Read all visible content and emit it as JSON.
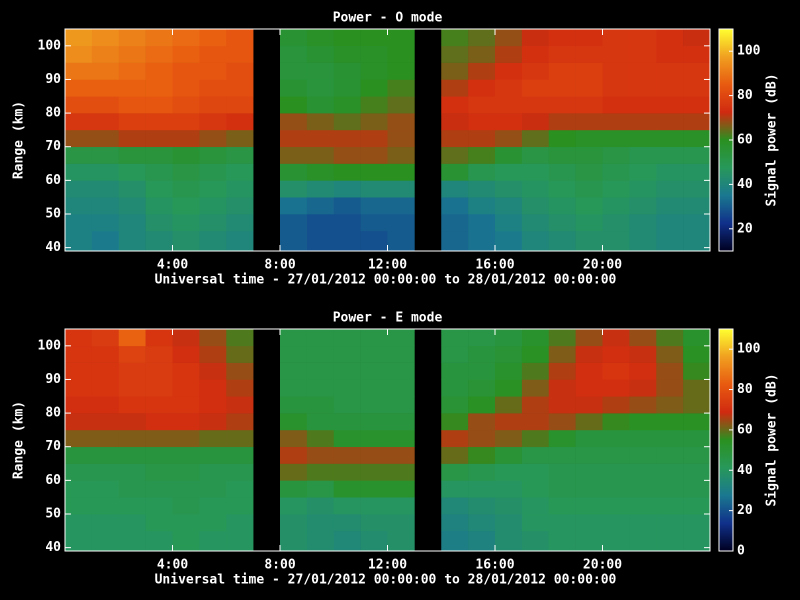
{
  "chart_data": [
    {
      "type": "heatmap",
      "title": "Power - O mode",
      "x_label": "Universal time - 27/01/2012 00:00:00 to 28/01/2012 00:00:00",
      "y_label": "Range (km)",
      "colorbar_label": "Signal power (dB)",
      "x": [
        0,
        1,
        2,
        3,
        4,
        5,
        6,
        7,
        8,
        9,
        10,
        11,
        12,
        13,
        14,
        15,
        16,
        17,
        18,
        19,
        20,
        21,
        22,
        23
      ],
      "y": [
        40,
        45,
        50,
        55,
        60,
        65,
        70,
        75,
        80,
        85,
        90,
        95,
        100
      ],
      "z": [
        [
          38,
          36,
          40,
          42,
          44,
          42,
          40,
          null,
          30,
          28,
          28,
          28,
          30,
          null,
          32,
          34,
          36,
          40,
          42,
          44,
          44,
          42,
          40,
          40
        ],
        [
          38,
          38,
          40,
          44,
          46,
          44,
          42,
          null,
          30,
          28,
          28,
          30,
          30,
          null,
          32,
          34,
          38,
          42,
          44,
          46,
          44,
          42,
          40,
          40
        ],
        [
          40,
          40,
          42,
          46,
          48,
          46,
          44,
          null,
          34,
          32,
          30,
          32,
          32,
          null,
          34,
          38,
          40,
          44,
          46,
          48,
          46,
          44,
          42,
          42
        ],
        [
          42,
          42,
          44,
          48,
          50,
          48,
          46,
          null,
          44,
          42,
          40,
          42,
          42,
          null,
          40,
          42,
          44,
          46,
          48,
          50,
          48,
          46,
          44,
          44
        ],
        [
          46,
          46,
          48,
          50,
          52,
          50,
          48,
          null,
          56,
          58,
          60,
          60,
          60,
          null,
          56,
          50,
          48,
          48,
          50,
          52,
          50,
          48,
          46,
          46
        ],
        [
          52,
          52,
          54,
          54,
          56,
          54,
          52,
          null,
          66,
          66,
          68,
          68,
          66,
          null,
          64,
          62,
          56,
          52,
          54,
          54,
          52,
          50,
          50,
          50
        ],
        [
          68,
          68,
          70,
          70,
          70,
          68,
          66,
          null,
          70,
          70,
          70,
          70,
          68,
          null,
          70,
          70,
          68,
          64,
          60,
          58,
          58,
          58,
          58,
          58
        ],
        [
          76,
          76,
          78,
          78,
          78,
          76,
          74,
          null,
          68,
          66,
          64,
          66,
          68,
          null,
          72,
          74,
          74,
          72,
          70,
          70,
          70,
          70,
          70,
          70
        ],
        [
          82,
          82,
          84,
          84,
          82,
          80,
          80,
          null,
          60,
          56,
          58,
          62,
          64,
          null,
          74,
          76,
          76,
          76,
          76,
          76,
          74,
          74,
          74,
          74
        ],
        [
          86,
          86,
          86,
          86,
          84,
          82,
          82,
          null,
          56,
          54,
          56,
          60,
          62,
          null,
          70,
          74,
          76,
          78,
          78,
          78,
          76,
          76,
          76,
          76
        ],
        [
          90,
          90,
          88,
          86,
          84,
          84,
          82,
          null,
          54,
          54,
          56,
          58,
          60,
          null,
          66,
          70,
          74,
          76,
          78,
          78,
          76,
          76,
          76,
          76
        ],
        [
          94,
          92,
          90,
          88,
          86,
          84,
          84,
          null,
          54,
          56,
          58,
          58,
          60,
          null,
          64,
          66,
          70,
          74,
          76,
          76,
          76,
          76,
          74,
          74
        ],
        [
          96,
          94,
          92,
          90,
          88,
          86,
          84,
          null,
          56,
          58,
          60,
          60,
          60,
          null,
          62,
          64,
          68,
          72,
          74,
          74,
          76,
          76,
          74,
          72
        ]
      ],
      "xlim": [
        0,
        24
      ],
      "xticks": [
        {
          "value": 4,
          "label": "4:00"
        },
        {
          "value": 8,
          "label": "8:00"
        },
        {
          "value": 12,
          "label": "12:00"
        },
        {
          "value": 16,
          "label": "16:00"
        },
        {
          "value": 20,
          "label": "20:00"
        }
      ],
      "ylim": [
        39,
        105
      ],
      "yticks": [
        40,
        50,
        60,
        70,
        80,
        90,
        100
      ],
      "clim": [
        10,
        110
      ],
      "cticks": [
        20,
        40,
        60,
        80,
        100
      ],
      "colormap": [
        "#000020",
        "#10308a",
        "#1a7890",
        "#28985a",
        "#2a9020",
        "#d02a10",
        "#e85a10",
        "#f0a020",
        "#ffff30"
      ]
    },
    {
      "type": "heatmap",
      "title": "Power - E mode",
      "x_label": "Universal time - 27/01/2012 00:00:00 to 28/01/2012 00:00:00",
      "y_label": "Range (km)",
      "colorbar_label": "Signal power (dB)",
      "x": [
        0,
        1,
        2,
        3,
        4,
        5,
        6,
        7,
        8,
        9,
        10,
        11,
        12,
        13,
        14,
        15,
        16,
        17,
        18,
        19,
        20,
        21,
        22,
        23
      ],
      "y": [
        40,
        45,
        50,
        55,
        60,
        65,
        70,
        75,
        80,
        85,
        90,
        95,
        100
      ],
      "z": [
        [
          40,
          40,
          40,
          40,
          42,
          40,
          40,
          null,
          38,
          36,
          34,
          36,
          38,
          null,
          30,
          32,
          36,
          38,
          40,
          40,
          40,
          40,
          40,
          40
        ],
        [
          40,
          40,
          40,
          42,
          42,
          42,
          40,
          null,
          38,
          36,
          36,
          38,
          38,
          null,
          32,
          34,
          36,
          40,
          40,
          40,
          40,
          40,
          40,
          40
        ],
        [
          42,
          42,
          42,
          42,
          44,
          42,
          42,
          null,
          40,
          38,
          40,
          40,
          40,
          null,
          34,
          36,
          38,
          40,
          42,
          42,
          42,
          42,
          42,
          42
        ],
        [
          42,
          42,
          44,
          44,
          44,
          44,
          42,
          null,
          48,
          46,
          52,
          52,
          52,
          null,
          40,
          40,
          40,
          42,
          44,
          44,
          44,
          44,
          44,
          44
        ],
        [
          44,
          44,
          44,
          46,
          46,
          44,
          44,
          null,
          60,
          58,
          58,
          58,
          58,
          null,
          46,
          44,
          42,
          42,
          44,
          44,
          44,
          44,
          44,
          44
        ],
        [
          48,
          48,
          48,
          48,
          48,
          48,
          48,
          null,
          66,
          64,
          64,
          64,
          64,
          null,
          60,
          56,
          50,
          46,
          46,
          46,
          46,
          46,
          46,
          46
        ],
        [
          62,
          62,
          62,
          62,
          62,
          60,
          60,
          null,
          62,
          58,
          52,
          52,
          52,
          null,
          66,
          64,
          62,
          58,
          52,
          48,
          48,
          48,
          48,
          48
        ],
        [
          68,
          68,
          68,
          70,
          70,
          68,
          66,
          null,
          52,
          48,
          48,
          48,
          48,
          null,
          56,
          64,
          66,
          66,
          64,
          60,
          56,
          54,
          54,
          54
        ],
        [
          70,
          70,
          72,
          72,
          72,
          70,
          68,
          null,
          48,
          48,
          46,
          46,
          46,
          null,
          50,
          54,
          60,
          66,
          68,
          68,
          66,
          64,
          62,
          60
        ],
        [
          72,
          72,
          74,
          74,
          72,
          70,
          66,
          null,
          46,
          46,
          46,
          46,
          46,
          null,
          48,
          50,
          54,
          62,
          68,
          70,
          70,
          68,
          64,
          60
        ],
        [
          72,
          72,
          74,
          74,
          72,
          68,
          64,
          null,
          46,
          46,
          46,
          46,
          46,
          null,
          48,
          48,
          52,
          58,
          66,
          70,
          72,
          70,
          64,
          56
        ],
        [
          72,
          72,
          76,
          74,
          70,
          66,
          60,
          null,
          46,
          46,
          46,
          46,
          46,
          null,
          46,
          48,
          50,
          54,
          62,
          68,
          70,
          68,
          62,
          54
        ],
        [
          72,
          74,
          84,
          72,
          68,
          64,
          58,
          null,
          46,
          46,
          46,
          46,
          46,
          null,
          46,
          46,
          48,
          52,
          58,
          64,
          68,
          64,
          58,
          52
        ]
      ],
      "xlim": [
        0,
        24
      ],
      "xticks": [
        {
          "value": 4,
          "label": "4:00"
        },
        {
          "value": 8,
          "label": "8:00"
        },
        {
          "value": 12,
          "label": "12:00"
        },
        {
          "value": 16,
          "label": "16:00"
        },
        {
          "value": 20,
          "label": "20:00"
        }
      ],
      "ylim": [
        39,
        105
      ],
      "yticks": [
        40,
        50,
        60,
        70,
        80,
        90,
        100
      ],
      "clim": [
        0,
        110
      ],
      "cticks": [
        0,
        20,
        40,
        60,
        80,
        100
      ],
      "colormap": [
        "#000020",
        "#10308a",
        "#1a7890",
        "#28985a",
        "#2a9020",
        "#d02a10",
        "#e85a10",
        "#f0a020",
        "#ffff30"
      ]
    }
  ]
}
